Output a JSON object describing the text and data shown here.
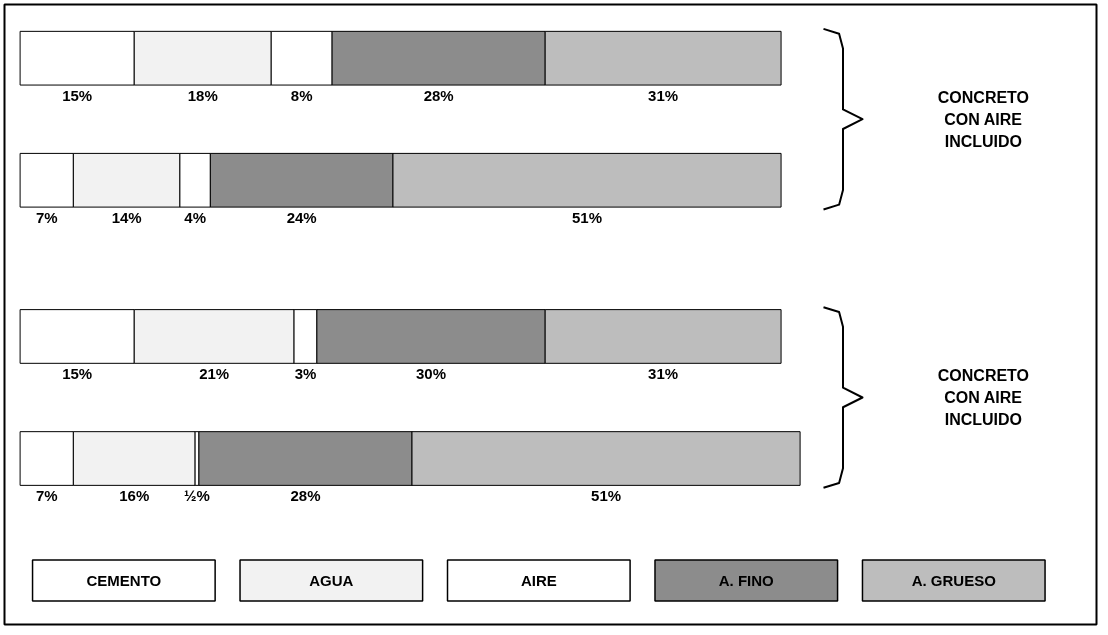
{
  "chart_data": {
    "type": "bar",
    "orientation": "horizontal",
    "stacked": true,
    "categories": [
      null,
      null,
      null,
      null
    ],
    "series": [
      {
        "name": "CEMENTO",
        "color": "#ffffff",
        "values": [
          15,
          7,
          15,
          7
        ],
        "value_labels": [
          "15%",
          "7%",
          "15%",
          "7%"
        ]
      },
      {
        "name": "AGUA",
        "color": "#f2f2f2",
        "values": [
          18,
          14,
          21,
          16
        ],
        "value_labels": [
          "18%",
          "14%",
          "21%",
          "16%"
        ]
      },
      {
        "name": "AIRE",
        "color": "#ffffff",
        "values": [
          8,
          4,
          3,
          0.5
        ],
        "value_labels": [
          "8%",
          "4%",
          "3%",
          "½%"
        ]
      },
      {
        "name": "A. FINO",
        "color": "#8c8c8c",
        "values": [
          28,
          24,
          30,
          28
        ],
        "value_labels": [
          "28%",
          "24%",
          "30%",
          "28%"
        ]
      },
      {
        "name": "A. GRUESO",
        "color": "#bdbdbd",
        "values": [
          31,
          51,
          31,
          51
        ],
        "value_labels": [
          "31%",
          "51%",
          "31%",
          "51%"
        ]
      }
    ],
    "annotations": [
      "CONCRETO CON AIRE INCLUIDO",
      "CONCRETO CON AIRE INCLUIDO"
    ],
    "legend": "bottom"
  }
}
